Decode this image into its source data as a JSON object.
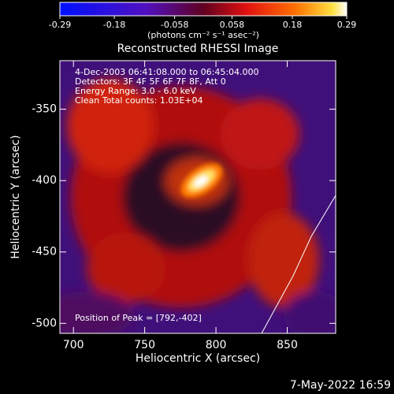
{
  "chart_data": {
    "type": "image",
    "title": "Reconstructed RHESSI Image",
    "colorbar": {
      "lim": [
        -0.29,
        0.29
      ],
      "ticks": [
        -0.29,
        -0.18,
        -0.058,
        0.058,
        0.18,
        0.29
      ],
      "label": "(photons cm⁻² s⁻¹ asec⁻²)"
    },
    "xlabel": "Heliocentric X (arcsec)",
    "ylabel": "Heliocentric Y (arcsec)",
    "xlim": [
      690.5,
      884
    ],
    "xticks": [
      700,
      750,
      800,
      850
    ],
    "ylim": [
      -507,
      -316
    ],
    "yticks": [
      -350,
      -400,
      -450,
      -500
    ],
    "annotations": [
      " 4-Dec-2003 06:41:08.000 to 06:45:04.000",
      "Detectors: 3F 4F 5F 6F 7F 8F, Att 0",
      "Energy Range: 3.0 - 6.0 keV",
      "Clean    Total counts: 1.03E+04"
    ],
    "peak_label": "Position of Peak = [792,-402]",
    "timestamp": "7-May-2022 16:59"
  }
}
